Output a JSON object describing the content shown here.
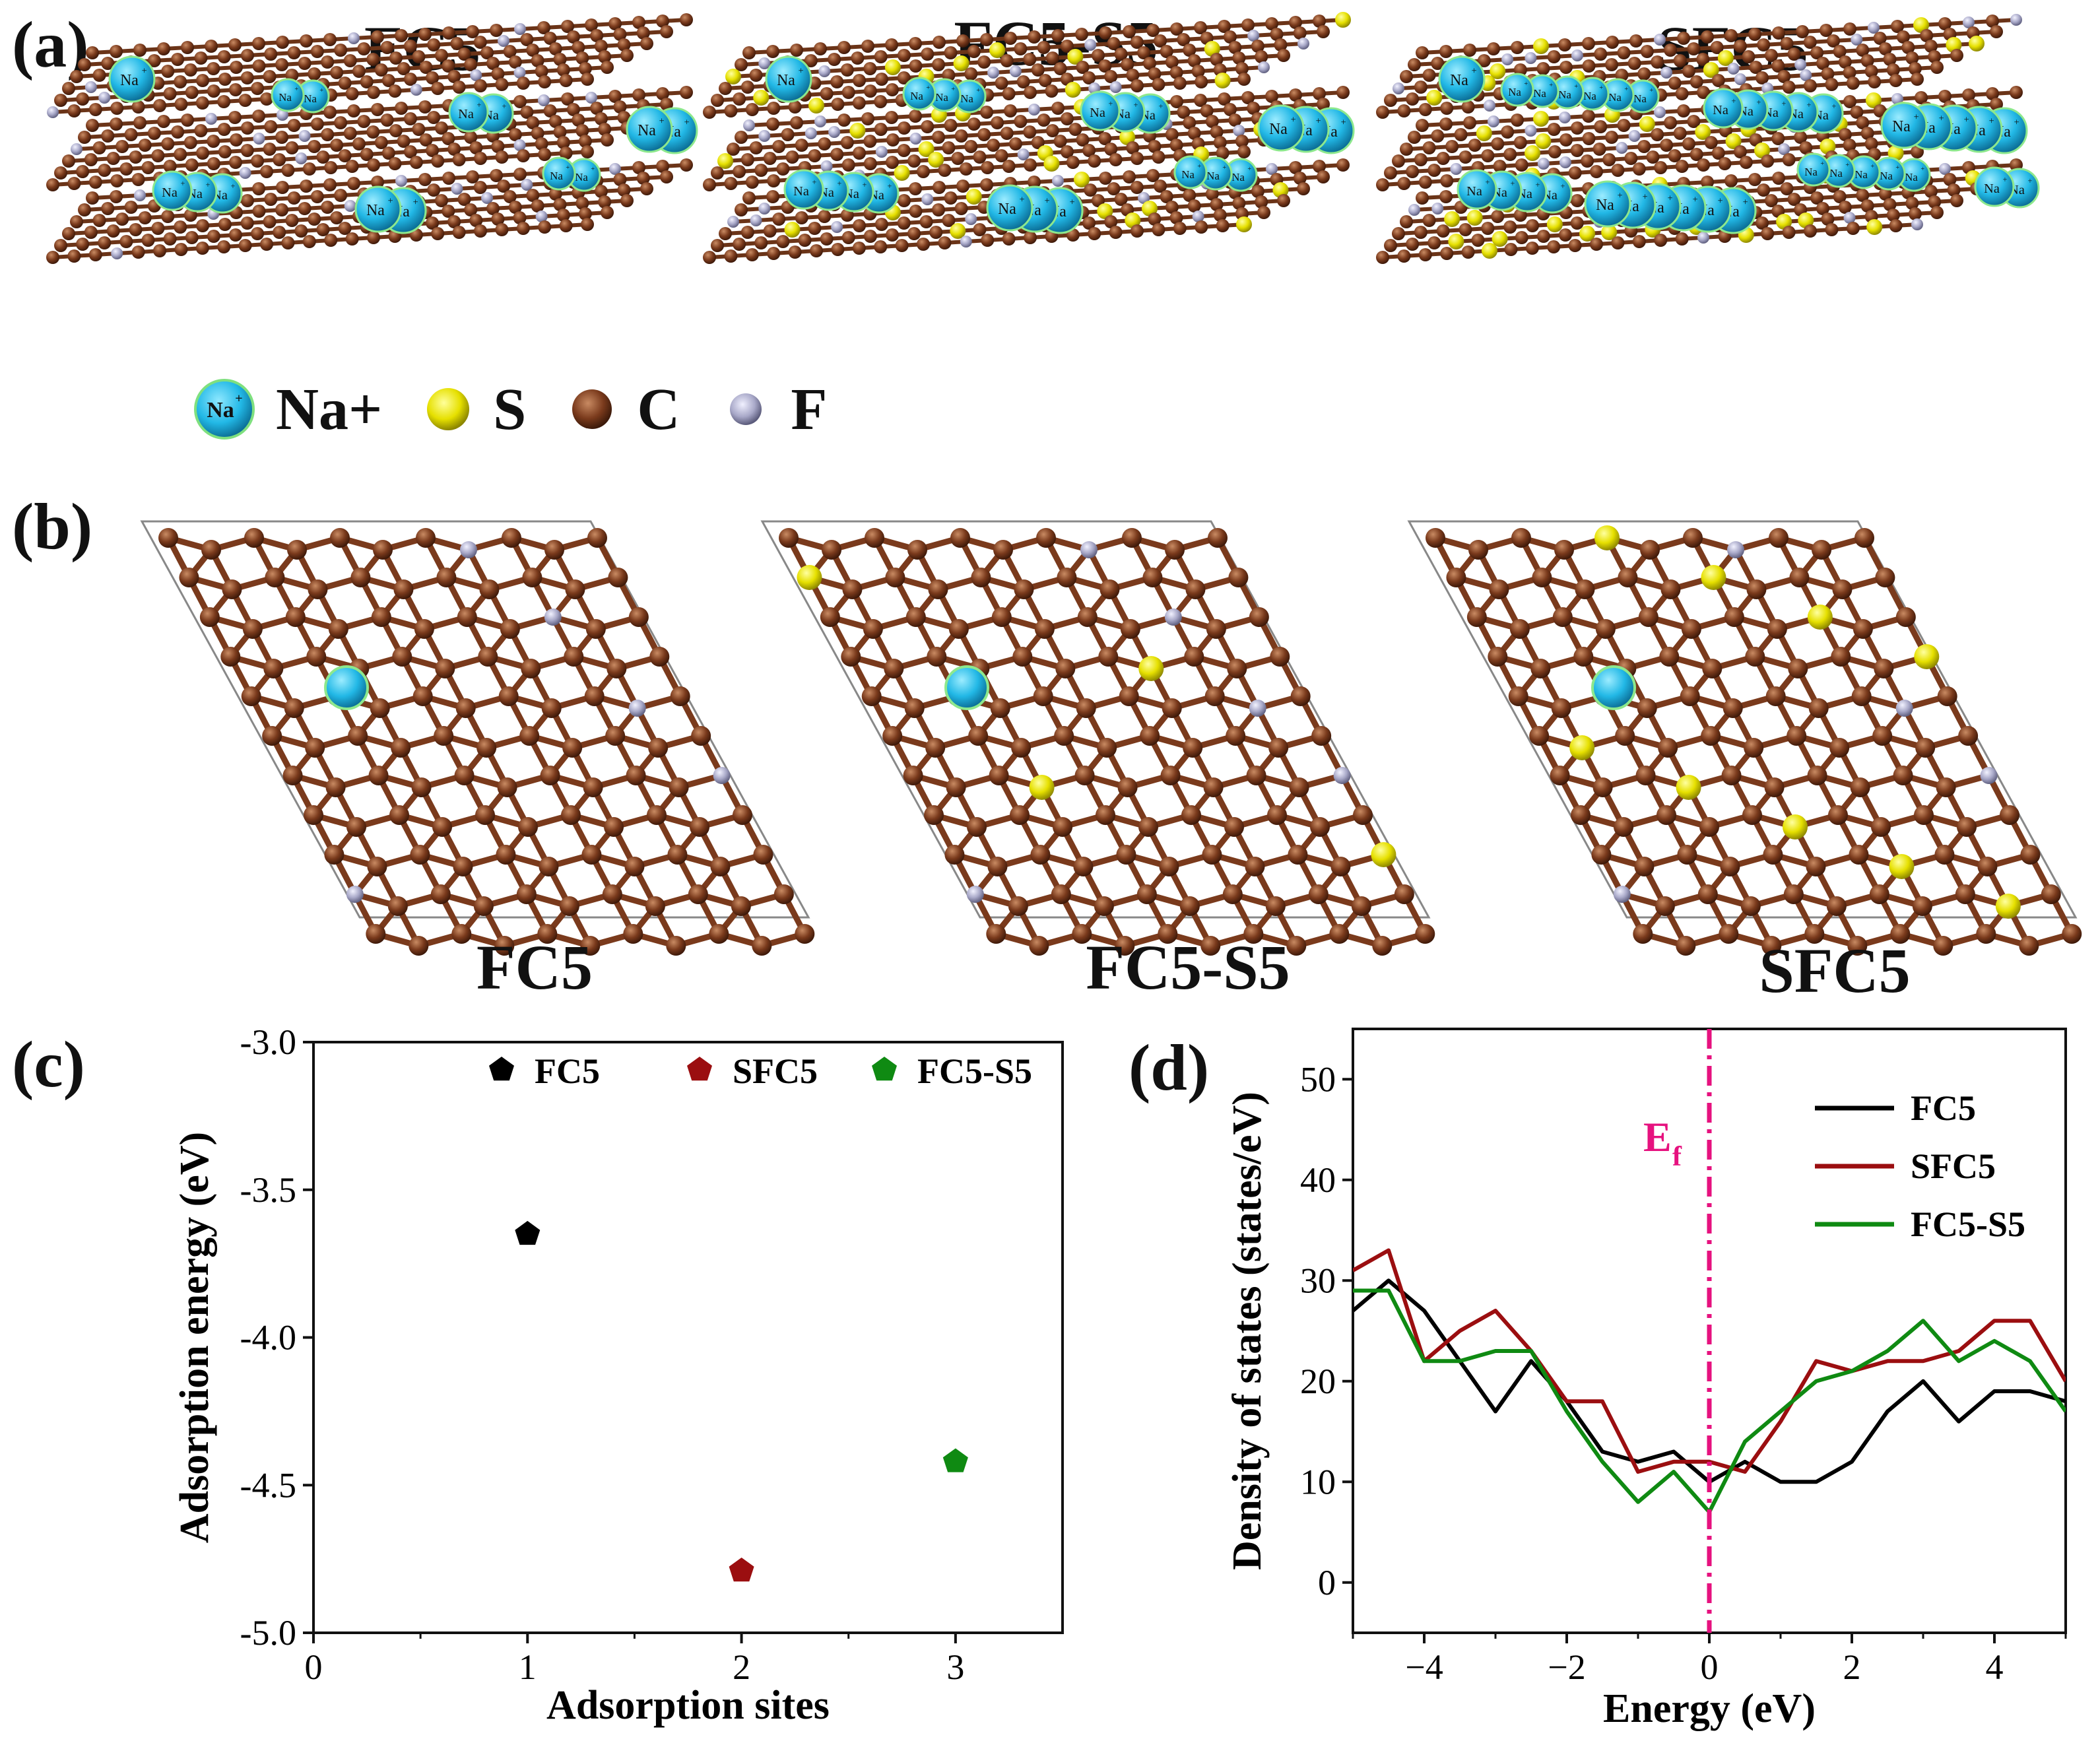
{
  "panel_a": {
    "label": "(a)",
    "titles": [
      "FC5",
      "FC5-S5",
      "SFC5"
    ],
    "ion_label": "Na",
    "ion_sup": "+",
    "legend": [
      {
        "name": "Na+",
        "color": "#22b8e6"
      },
      {
        "name": "S",
        "color": "#e6e000"
      },
      {
        "name": "C",
        "color": "#7a3a1c"
      },
      {
        "name": "F",
        "color": "#a8a8c8"
      }
    ]
  },
  "panel_b": {
    "label": "(b)",
    "titles": [
      "FC5",
      "FC5-S5",
      "SFC5"
    ]
  },
  "colors": {
    "carbon": "#7a3a1c",
    "fluorine": "#a8a8c8",
    "sulfur": "#e6e000",
    "sodium": "#22b8e6",
    "fc5": "#000000",
    "sfc5": "#9b0e10",
    "fc5s5": "#0f8a12",
    "fermi": "#e6127f"
  },
  "chart_data": [
    {
      "panel": "(c)",
      "type": "scatter",
      "xlabel": "Adsorption sites",
      "ylabel": "Adsorption energy (eV)",
      "xlim": [
        0,
        3.5
      ],
      "ylim": [
        -5.0,
        -3.0
      ],
      "xticks": [
        0,
        1,
        2,
        3
      ],
      "xtick_labels": [
        "0",
        "1",
        "2",
        "3"
      ],
      "yticks": [
        -3.0,
        -3.5,
        -4.0,
        -4.5,
        -5.0
      ],
      "ytick_labels": [
        "-3.0",
        "-3.5",
        "-4.0",
        "-4.5",
        "-5.0"
      ],
      "legend_position": "top",
      "series": [
        {
          "name": "FC5",
          "x": [
            1
          ],
          "values": [
            -3.65
          ]
        },
        {
          "name": "SFC5",
          "x": [
            2
          ],
          "values": [
            -4.79
          ]
        },
        {
          "name": "FC5-S5",
          "x": [
            3
          ],
          "values": [
            -4.42
          ]
        }
      ]
    },
    {
      "panel": "(d)",
      "type": "line",
      "xlabel": "Energy (eV)",
      "ylabel": "Density of states (states/eV)",
      "xlim": [
        -5,
        5
      ],
      "ylim": [
        -5,
        55
      ],
      "xticks": [
        -4,
        -2,
        0,
        2,
        4
      ],
      "xtick_labels": [
        "−4",
        "−2",
        "0",
        "2",
        "4"
      ],
      "yticks": [
        0,
        10,
        20,
        30,
        40,
        50
      ],
      "ytick_labels": [
        "0",
        "10",
        "20",
        "30",
        "40",
        "50"
      ],
      "legend_position": "top-right",
      "fermi_level": {
        "x": 0,
        "label": "E",
        "sub": "f"
      },
      "x": [
        -5,
        -4.5,
        -4,
        -3.5,
        -3,
        -2.5,
        -2,
        -1.5,
        -1,
        -0.5,
        0,
        0.5,
        1,
        1.5,
        2,
        2.5,
        3,
        3.5,
        4,
        4.5,
        5
      ],
      "series": [
        {
          "name": "FC5",
          "values": [
            27,
            30,
            27,
            22,
            17,
            22,
            18,
            13,
            12,
            13,
            10,
            12,
            10,
            10,
            12,
            17,
            20,
            16,
            19,
            19,
            18
          ]
        },
        {
          "name": "SFC5",
          "values": [
            31,
            33,
            22,
            25,
            27,
            23,
            18,
            18,
            11,
            12,
            12,
            11,
            16,
            22,
            21,
            22,
            22,
            23,
            26,
            26,
            20
          ]
        },
        {
          "name": "FC5-S5",
          "values": [
            29,
            29,
            22,
            22,
            23,
            23,
            17,
            12,
            8,
            11,
            7,
            14,
            17,
            20,
            21,
            23,
            26,
            22,
            24,
            22,
            17
          ]
        }
      ]
    }
  ]
}
